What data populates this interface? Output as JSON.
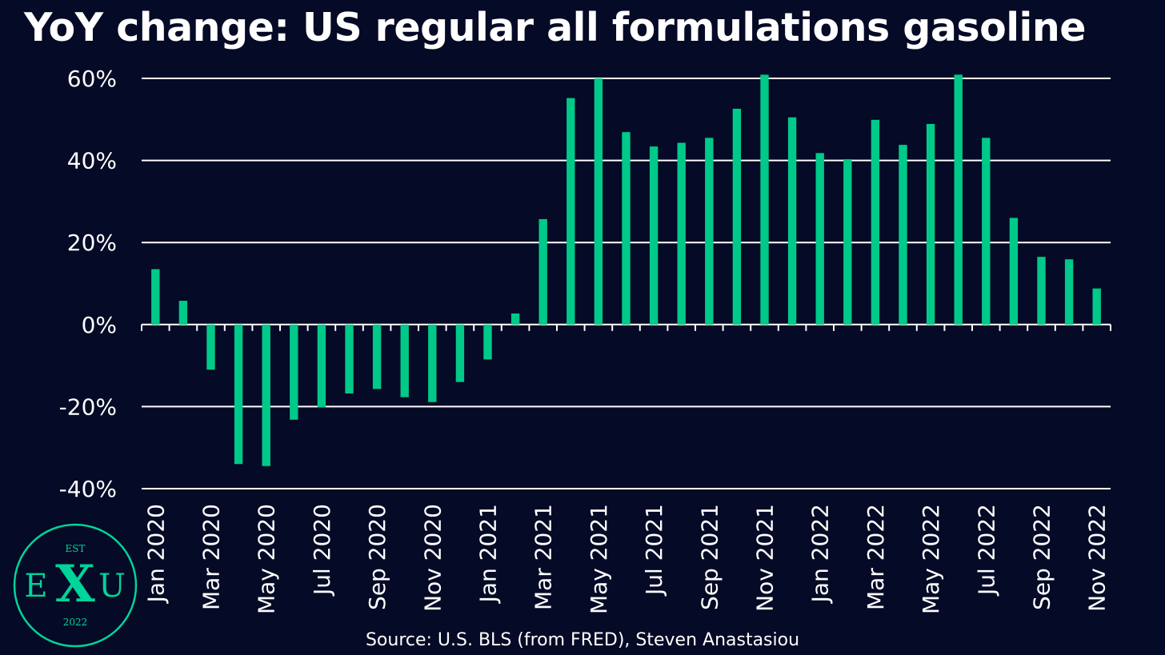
{
  "chart_data": {
    "type": "bar",
    "title": "YoY change: US regular all formulations gasoline",
    "xlabel": "",
    "ylabel": "",
    "ylim": [
      -40,
      60
    ],
    "yticks": [
      60,
      40,
      20,
      0,
      -20,
      -40
    ],
    "ytick_suffix": "%",
    "grid": true,
    "legend": "none",
    "categories": [
      "Jan 2020",
      "Feb 2020",
      "Mar 2020",
      "Apr 2020",
      "May 2020",
      "Jun 2020",
      "Jul 2020",
      "Aug 2020",
      "Sep 2020",
      "Oct 2020",
      "Nov 2020",
      "Dec 2020",
      "Jan 2021",
      "Feb 2021",
      "Mar 2021",
      "Apr 2021",
      "May 2021",
      "Jun 2021",
      "Jul 2021",
      "Aug 2021",
      "Sep 2021",
      "Oct 2021",
      "Nov 2021",
      "Dec 2021",
      "Jan 2022",
      "Feb 2022",
      "Mar 2022",
      "Apr 2022",
      "May 2022",
      "Jun 2022",
      "Jul 2022",
      "Aug 2022",
      "Sep 2022",
      "Oct 2022",
      "Nov 2022"
    ],
    "x_tick_labels": [
      "Jan 2020",
      "Mar 2020",
      "May 2020",
      "Jul 2020",
      "Sep 2020",
      "Nov 2020",
      "Jan 2021",
      "Mar 2021",
      "May 2021",
      "Jul 2021",
      "Sep 2021",
      "Nov 2021",
      "Jan 2022",
      "Mar 2022",
      "May 2022",
      "Jul 2022",
      "Sep 2022",
      "Nov 2022"
    ],
    "values": [
      13.5,
      5.8,
      -11.0,
      -34.0,
      -34.5,
      -23.2,
      -20.2,
      -16.8,
      -15.7,
      -17.7,
      -18.9,
      -14.0,
      -8.5,
      2.7,
      25.7,
      55.2,
      60.0,
      46.9,
      43.4,
      44.3,
      45.5,
      52.6,
      60.9,
      50.5,
      41.8,
      40.3,
      49.9,
      43.8,
      48.9,
      60.9,
      45.5,
      26.0,
      16.5,
      15.9,
      8.8
    ],
    "bar_color": "#00c98a",
    "source": "Source: U.S. BLS (from FRED), Steven Anastasiou"
  },
  "logo": {
    "top_text": "EST",
    "left_letter": "E",
    "center_letter": "X",
    "right_letter": "U",
    "bottom_text": "2022",
    "color": "#00d49a"
  },
  "colors": {
    "background": "#050a26",
    "gridline": "#ffffff",
    "text": "#ffffff"
  }
}
